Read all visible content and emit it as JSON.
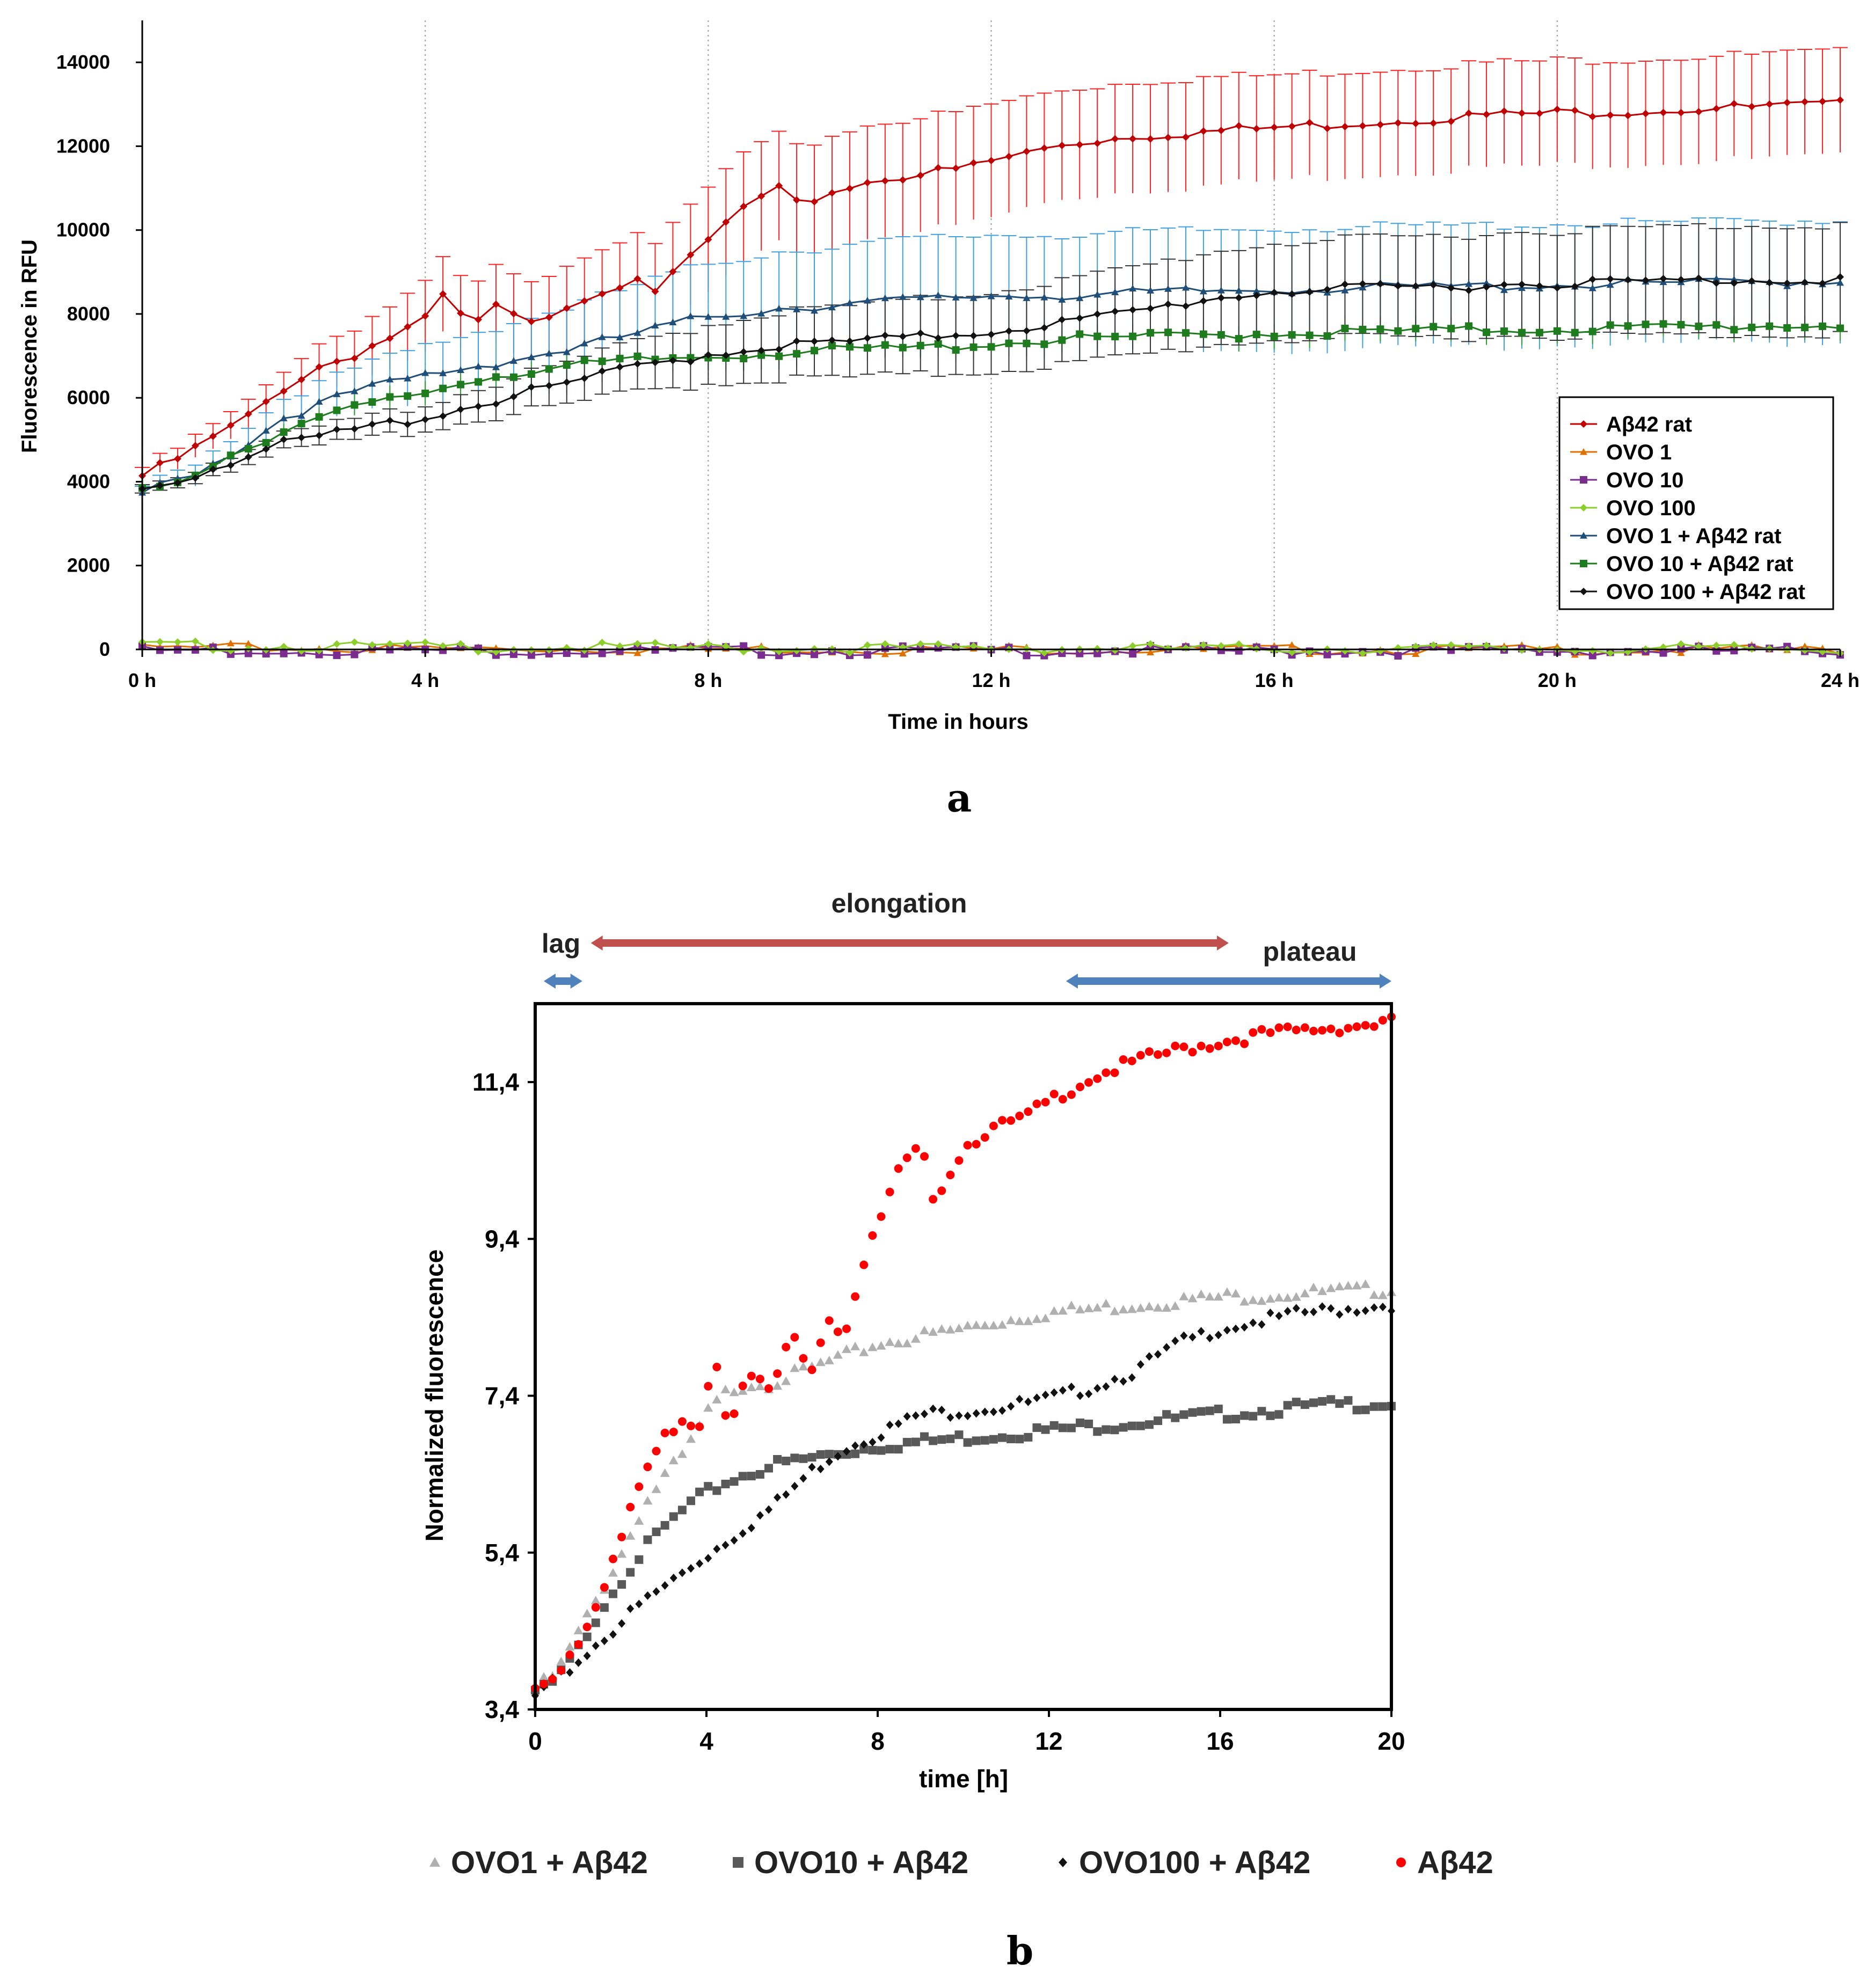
{
  "panel_a_label": "a",
  "panel_b_label": "b",
  "chart_data": [
    {
      "type": "line",
      "panel": "a",
      "xlabel": "Time in hours",
      "ylabel": "Fluorescence in RFU",
      "xlim": [
        0,
        24
      ],
      "ylim": [
        0,
        15000
      ],
      "xticks": [
        0,
        4,
        8,
        12,
        16,
        20,
        24
      ],
      "xtick_labels": [
        "0 h",
        "4 h",
        "8 h",
        "12 h",
        "16 h",
        "20 h",
        "24 h"
      ],
      "yticks": [
        0,
        2000,
        4000,
        6000,
        8000,
        10000,
        12000,
        14000
      ],
      "ytick_labels": [
        "0",
        "2000",
        "4000",
        "6000",
        "8000",
        "10000",
        "12000",
        "14000"
      ],
      "grid": "vertical dotted",
      "legend_position": "right",
      "series": [
        {
          "name": "Aβ42 rat",
          "color": "#c00000",
          "err_color": "#ff2020",
          "marker": "diamond",
          "x": [
            0,
            0.5,
            1,
            1.5,
            2,
            2.5,
            3,
            3.5,
            4,
            4.3,
            4.6,
            5,
            5.5,
            6,
            6.5,
            7,
            7.3,
            7.7,
            8,
            8.5,
            9,
            9.3,
            9.6,
            10,
            10.5,
            11,
            11.5,
            12,
            13,
            14,
            15,
            16,
            17,
            18,
            19,
            20,
            21,
            22,
            23,
            24
          ],
          "y": [
            4200,
            4600,
            5100,
            5600,
            6300,
            6800,
            7100,
            7500,
            7900,
            8600,
            7700,
            8200,
            7800,
            8300,
            8600,
            9000,
            8600,
            9300,
            9800,
            10600,
            11000,
            10600,
            10900,
            11100,
            11300,
            11400,
            11500,
            11700,
            12100,
            12300,
            12400,
            12500,
            12600,
            12700,
            12800,
            12850,
            12900,
            12950,
            13000,
            13050
          ],
          "err": [
            200,
            250,
            300,
            350,
            450,
            550,
            650,
            750,
            850,
            900,
            900,
            950,
            950,
            1000,
            1050,
            1100,
            1150,
            1200,
            1250,
            1300,
            1300,
            1350,
            1350,
            1350,
            1350,
            1350,
            1350,
            1350,
            1300,
            1300,
            1300,
            1250,
            1250,
            1250,
            1250,
            1250,
            1250,
            1250,
            1250,
            1250
          ]
        },
        {
          "name": "OVO 1",
          "color": "#e07000",
          "marker": "triangle",
          "x": [
            0,
            4,
            8,
            12,
            16,
            20,
            24
          ],
          "y": [
            90,
            80,
            70,
            60,
            55,
            50,
            45
          ],
          "err": [
            60,
            60,
            60,
            60,
            60,
            60,
            60
          ]
        },
        {
          "name": "OVO 10",
          "color": "#7b2c8f",
          "marker": "square",
          "x": [
            0,
            4,
            8,
            12,
            16,
            20,
            24
          ],
          "y": [
            40,
            35,
            30,
            30,
            25,
            25,
            20
          ],
          "err": [
            40,
            40,
            40,
            40,
            40,
            40,
            40
          ]
        },
        {
          "name": "OVO 100",
          "color": "#8ccf2a",
          "marker": "diamond",
          "x": [
            0,
            4,
            8,
            12,
            16,
            20,
            24
          ],
          "y": [
            150,
            120,
            100,
            90,
            80,
            75,
            70
          ],
          "err": [
            60,
            60,
            60,
            60,
            60,
            60,
            60
          ]
        },
        {
          "name": "OVO 1 + Aβ42 rat",
          "color": "#1f4e79",
          "err_color": "#3f9fe0",
          "marker": "triangle",
          "x": [
            0,
            0.5,
            1,
            1.5,
            2,
            3,
            4,
            5,
            6,
            7,
            8,
            9,
            10,
            11,
            12,
            13,
            14,
            15,
            16,
            18,
            20,
            22,
            24
          ],
          "y": [
            3800,
            4100,
            4500,
            5000,
            5600,
            6200,
            6600,
            6900,
            7200,
            7600,
            8000,
            8200,
            8300,
            8400,
            8500,
            8500,
            8550,
            8600,
            8650,
            8700,
            8750,
            8800,
            8850
          ],
          "err": [
            150,
            200,
            300,
            400,
            450,
            550,
            700,
            850,
            1000,
            1150,
            1250,
            1350,
            1400,
            1450,
            1450,
            1450,
            1450,
            1450,
            1450,
            1450,
            1450,
            1450,
            1450
          ]
        },
        {
          "name": "OVO 10 + Aβ42 rat",
          "color": "#1e7b1e",
          "err_color": "#2da02d",
          "marker": "square",
          "x": [
            0,
            0.5,
            1,
            1.5,
            2,
            3,
            4,
            5,
            6,
            7,
            8,
            9,
            10,
            11,
            12,
            13,
            14,
            15,
            16,
            18,
            20,
            22,
            24
          ],
          "y": [
            3800,
            4100,
            4500,
            4900,
            5300,
            5800,
            6200,
            6600,
            6800,
            6950,
            7050,
            7150,
            7200,
            7250,
            7350,
            7450,
            7500,
            7550,
            7600,
            7650,
            7700,
            7750,
            7800
          ],
          "err": [
            100,
            120,
            150,
            180,
            200,
            250,
            300,
            300,
            300,
            300,
            300,
            300,
            300,
            300,
            300,
            300,
            300,
            300,
            300,
            300,
            300,
            300,
            300
          ]
        },
        {
          "name": "OVO 100 + Aβ42 rat",
          "color": "#111111",
          "marker": "diamond",
          "x": [
            0,
            0.5,
            1,
            1.5,
            2,
            3,
            4,
            5,
            6,
            7,
            8,
            9,
            10,
            11,
            12,
            13,
            14,
            15,
            16,
            18,
            20,
            22,
            24
          ],
          "y": [
            3900,
            4100,
            4400,
            4700,
            4950,
            5300,
            5600,
            6000,
            6400,
            6800,
            7100,
            7300,
            7400,
            7500,
            7650,
            7850,
            8100,
            8400,
            8600,
            8700,
            8800,
            8850,
            8900
          ],
          "err": [
            100,
            120,
            150,
            180,
            200,
            250,
            300,
            400,
            500,
            600,
            700,
            800,
            850,
            900,
            950,
            1000,
            1050,
            1100,
            1150,
            1200,
            1250,
            1300,
            1300
          ]
        }
      ]
    },
    {
      "type": "scatter",
      "panel": "b",
      "xlabel": "time [h]",
      "ylabel": "Normalized fluorescence",
      "xlim": [
        0,
        20
      ],
      "ylim": [
        3.4,
        12.4
      ],
      "xticks": [
        0,
        4,
        8,
        12,
        16,
        20
      ],
      "xtick_labels": [
        "0",
        "4",
        "8",
        "12",
        "16",
        "20"
      ],
      "yticks": [
        3.4,
        5.4,
        7.4,
        9.4,
        11.4
      ],
      "ytick_labels": [
        "3,4",
        "5,4",
        "7,4",
        "9,4",
        "11,4"
      ],
      "grid": false,
      "legend_position": "bottom",
      "annotations": [
        {
          "label": "lag",
          "x_start": 0.2,
          "x_end": 1.1,
          "color": "#4f81bd"
        },
        {
          "label": "elongation",
          "x_start": 1.3,
          "x_end": 16.2,
          "color": "#c0504d"
        },
        {
          "label": "plateau",
          "x_start": 12.4,
          "x_end": 20,
          "color": "#4f81bd"
        }
      ],
      "series": [
        {
          "name": "OVO1 + Aβ42",
          "color": "#b0b0b0",
          "marker": "triangle",
          "x": [
            0,
            0.5,
            1,
            1.5,
            2,
            2.5,
            3,
            3.5,
            4,
            4.5,
            5,
            5.5,
            6,
            6.5,
            7,
            7.5,
            8,
            9,
            10,
            11,
            12,
            13,
            14,
            15,
            16,
            17,
            18,
            19,
            20
          ],
          "y": [
            3.7,
            3.9,
            4.4,
            4.9,
            5.4,
            6.0,
            6.4,
            6.7,
            7.2,
            7.5,
            7.6,
            7.6,
            7.7,
            7.8,
            7.9,
            8.0,
            8.1,
            8.2,
            8.3,
            8.4,
            8.5,
            8.55,
            8.6,
            8.65,
            8.7,
            8.72,
            8.75,
            8.78,
            8.8
          ]
        },
        {
          "name": "OVO10 + Aβ42",
          "color": "#595959",
          "marker": "square",
          "x": [
            0,
            0.5,
            1,
            1.5,
            2,
            2.5,
            3,
            3.5,
            4,
            4.5,
            5,
            5.5,
            6,
            6.5,
            7,
            7.5,
            8,
            9,
            10,
            11,
            12,
            13,
            14,
            15,
            16,
            17,
            18,
            19,
            20
          ],
          "y": [
            3.65,
            3.8,
            4.2,
            4.7,
            5.1,
            5.45,
            5.75,
            6.0,
            6.2,
            6.35,
            6.45,
            6.55,
            6.6,
            6.65,
            6.7,
            6.75,
            6.8,
            6.85,
            6.9,
            6.95,
            7.0,
            7.05,
            7.1,
            7.15,
            7.2,
            7.25,
            7.3,
            7.33,
            7.35
          ]
        },
        {
          "name": "OVO100 + Aβ42",
          "color": "#111111",
          "marker": "diamond",
          "x": [
            0,
            0.5,
            1,
            1.5,
            2,
            2.5,
            3,
            3.5,
            4,
            4.5,
            5,
            5.5,
            6,
            6.5,
            7,
            7.5,
            8,
            9,
            10,
            11,
            12,
            13,
            14,
            15,
            16,
            17,
            18,
            19,
            20
          ],
          "y": [
            3.6,
            3.8,
            4.05,
            4.3,
            4.55,
            4.8,
            5.0,
            5.2,
            5.4,
            5.6,
            5.8,
            6.0,
            6.25,
            6.5,
            6.7,
            6.85,
            6.95,
            7.2,
            7.25,
            7.3,
            7.4,
            7.55,
            7.75,
            8.1,
            8.3,
            8.4,
            8.5,
            8.55,
            8.6
          ]
        },
        {
          "name": "Aβ42",
          "color": "#ff0000",
          "marker": "circle",
          "x": [
            0,
            0.5,
            1,
            1.5,
            2,
            2.5,
            3,
            3.5,
            3.8,
            4.2,
            4.5,
            5,
            5.5,
            6,
            6.5,
            6.8,
            7.2,
            7.6,
            8,
            8.5,
            9,
            9.3,
            9.6,
            10,
            10.5,
            11,
            11.5,
            12,
            13,
            14,
            15,
            16,
            17,
            18,
            19,
            20
          ],
          "y": [
            3.7,
            3.9,
            4.3,
            4.9,
            5.6,
            6.4,
            6.9,
            7.2,
            7.0,
            8.0,
            7.1,
            7.7,
            7.5,
            8.2,
            7.8,
            8.5,
            8.2,
            9.0,
            9.6,
            10.3,
            10.6,
            10.0,
            10.2,
            10.6,
            10.8,
            10.9,
            11.0,
            11.2,
            11.5,
            11.7,
            11.85,
            11.95,
            12.05,
            12.1,
            12.15,
            12.2
          ]
        }
      ]
    }
  ]
}
